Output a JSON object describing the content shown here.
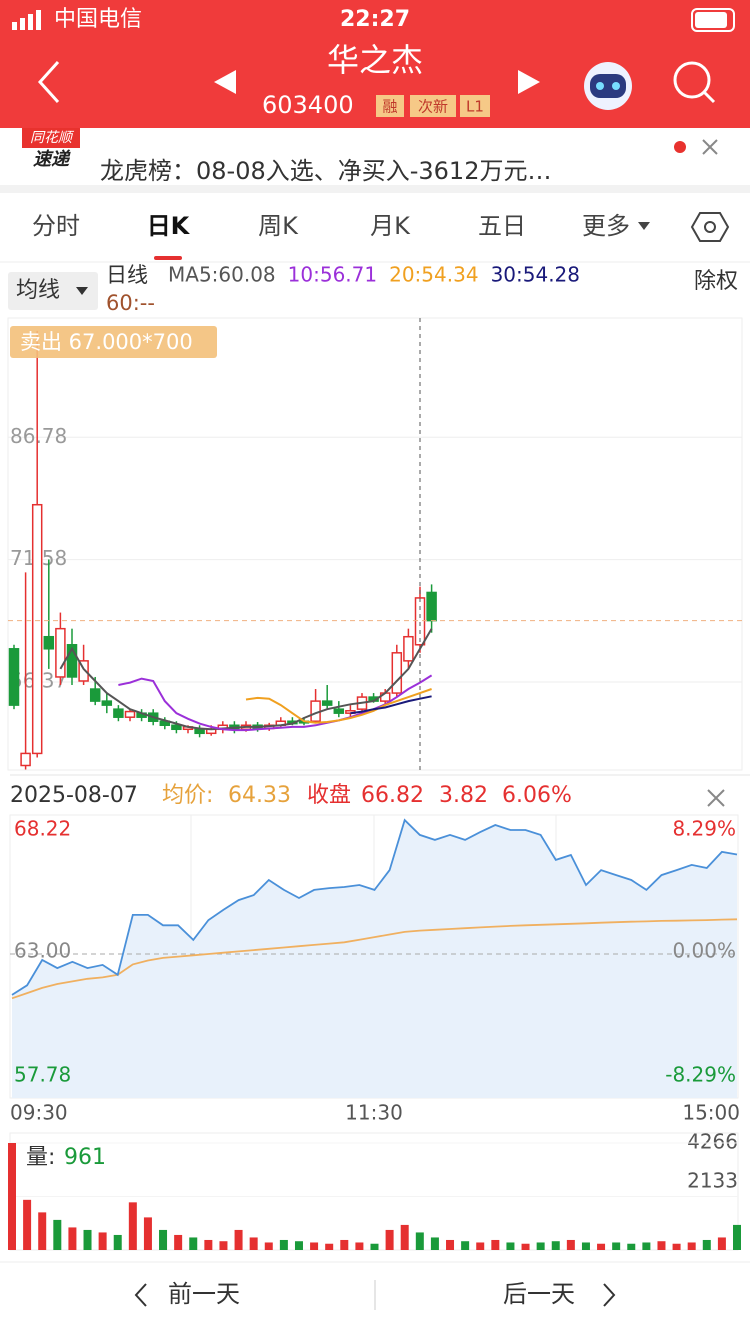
{
  "status": {
    "carrier": "中国电信",
    "time": "22:27"
  },
  "header": {
    "name": "华之杰",
    "code": "603400",
    "tags": [
      "融",
      "次新",
      "L1"
    ]
  },
  "news": {
    "badge_top": "同花顺",
    "badge_bottom": "速递",
    "text": "龙虎榜：08-08入选、净买入-3612万元…"
  },
  "tabs": {
    "items": [
      "分时",
      "日K",
      "周K",
      "月K",
      "五日",
      "更多"
    ],
    "active": 1
  },
  "kline": {
    "ma_button": "均线",
    "period": "日线",
    "ma60": "60:--",
    "adjust": "除权",
    "sell_tag": "卖出 67.000*700",
    "ma_labels": [
      {
        "label": "MA5:60.08",
        "color": "#555555"
      },
      {
        "label": "10:56.71",
        "color": "#9b30d9"
      },
      {
        "label": "20:54.34",
        "color": "#f0a020"
      },
      {
        "label": "30:54.28",
        "color": "#1a1a7a"
      }
    ],
    "ylim": [
      45.44,
      101.6
    ],
    "yticks": [
      86.78,
      71.58,
      56.37
    ],
    "selected": 35,
    "open": [
      60.5,
      46,
      47.5,
      62,
      57,
      61,
      56.5,
      55.5,
      54,
      53,
      52,
      52.5,
      52.5,
      51.5,
      51,
      50.5,
      50.5,
      50,
      50.5,
      51,
      50.5,
      51,
      50.6,
      51,
      51.5,
      51.5,
      51.5,
      54,
      53,
      52.5,
      53,
      54.5,
      54,
      55,
      59,
      61,
      67.5
    ],
    "close": [
      53.5,
      47.5,
      78.4,
      60.5,
      63,
      57,
      59,
      54,
      53.5,
      52,
      52.7,
      52,
      51.5,
      51,
      50.5,
      50.8,
      50,
      50.5,
      51,
      50.5,
      51,
      50.6,
      51,
      51.5,
      51.2,
      51.3,
      54,
      53.5,
      52.5,
      52.8,
      54.5,
      54,
      55,
      60,
      62,
      66.82,
      64
    ],
    "high": [
      61,
      70,
      100,
      71.6,
      65,
      63,
      61,
      57,
      55,
      53.5,
      53,
      53,
      53,
      52,
      51.5,
      51,
      51,
      51,
      51.5,
      51.5,
      51.5,
      51.4,
      51.3,
      52,
      52,
      52,
      55.5,
      56,
      54,
      53.5,
      55,
      55,
      55.5,
      61,
      63,
      68.22,
      68.5
    ],
    "low": [
      53,
      45.5,
      47,
      58,
      56,
      56,
      56,
      53.5,
      52.5,
      51.5,
      51.5,
      51.5,
      51,
      50.5,
      50,
      50,
      49.5,
      49.7,
      50,
      50,
      50.2,
      50.2,
      50.3,
      50.8,
      51,
      51,
      51.3,
      53,
      52,
      52,
      52.5,
      53.8,
      53.5,
      54.5,
      58,
      60,
      62.5
    ],
    "ma": [
      [
        null,
        null,
        null,
        null,
        58,
        60.5,
        58,
        56.5,
        55,
        54,
        53,
        52.5,
        52,
        51.6,
        51.2,
        50.8,
        50.6,
        50.5,
        50.6,
        50.7,
        50.8,
        50.8,
        50.9,
        51,
        51.2,
        51.9,
        52.5,
        53,
        53.3,
        53.6,
        53.8,
        54,
        55,
        56.5,
        58,
        60.5,
        63
      ],
      [
        null,
        null,
        null,
        null,
        null,
        null,
        null,
        null,
        null,
        56,
        56.3,
        56.8,
        56.5,
        54,
        52.5,
        51.8,
        51.2,
        50.8,
        50.5,
        50.4,
        50.4,
        50.5,
        50.6,
        50.7,
        50.8,
        50.8,
        51,
        51.3,
        51.6,
        52,
        52.5,
        53,
        53.6,
        54.5,
        55.5,
        56.3,
        57.2
      ],
      [
        null,
        null,
        null,
        null,
        null,
        null,
        null,
        null,
        null,
        null,
        null,
        null,
        null,
        null,
        null,
        null,
        null,
        null,
        null,
        null,
        54.2,
        54.4,
        54.3,
        53.5,
        52.5,
        51.5,
        51.3,
        51.4,
        51.6,
        51.9,
        52.3,
        52.8,
        53.5,
        54,
        54.5,
        55,
        55.5
      ],
      [
        null,
        null,
        null,
        null,
        null,
        null,
        null,
        null,
        null,
        null,
        null,
        null,
        null,
        null,
        null,
        null,
        null,
        null,
        null,
        null,
        null,
        null,
        null,
        null,
        null,
        null,
        null,
        null,
        null,
        52.5,
        52.7,
        53,
        53.2,
        53.6,
        54,
        54.3,
        54.6
      ]
    ]
  },
  "intraday": {
    "date": "2025-08-07",
    "avg_label": "均价:",
    "avg_value": 64.33,
    "close_label": "收盘",
    "close_value": 66.82,
    "change": 3.82,
    "change_pct": "6.06%",
    "ylim": [
      57.78,
      68.22
    ],
    "yticks": [
      68.22,
      {
        "value": 63,
        "label": "63.00"
      },
      57.78
    ],
    "pct_labels": [
      "8.29%",
      "0.00%",
      "-8.29%"
    ],
    "times": [
      "09:30",
      "11:30",
      "15:00"
    ],
    "price": [
      61.43,
      61.8,
      62.77,
      62.46,
      62.7,
      62.46,
      62.58,
      62.2,
      64.5,
      64.5,
      64.1,
      64.1,
      63.54,
      64.3,
      64.7,
      65.07,
      65.26,
      65.84,
      65.46,
      65.15,
      65.46,
      65.53,
      65.57,
      65.65,
      65.46,
      66.22,
      68.14,
      67.57,
      67.38,
      67.57,
      67.38,
      67.68,
      67.95,
      67.76,
      67.76,
      67.57,
      66.61,
      66.8,
      65.65,
      66.22,
      66.03,
      65.84,
      65.46,
      66.03,
      66.22,
      66.42,
      66.3,
      66.92,
      66.82
    ],
    "avg": [
      61.3,
      61.5,
      61.7,
      61.85,
      61.95,
      62.05,
      62.1,
      62.2,
      62.6,
      62.75,
      62.85,
      62.9,
      62.95,
      63.0,
      63.05,
      63.1,
      63.15,
      63.2,
      63.25,
      63.3,
      63.35,
      63.4,
      63.45,
      63.55,
      63.65,
      63.75,
      63.85,
      63.9,
      63.93,
      63.96,
      63.99,
      64.02,
      64.05,
      64.08,
      64.1,
      64.12,
      64.14,
      64.16,
      64.18,
      64.2,
      64.22,
      64.24,
      64.25,
      64.27,
      64.28,
      64.29,
      64.3,
      64.32,
      64.33
    ]
  },
  "volume": {
    "label": "量:",
    "value": 961,
    "ylim": [
      0,
      4266
    ],
    "yticks": [
      4266,
      2133
    ],
    "values": [
      4266,
      2000,
      1500,
      1200,
      900,
      800,
      700,
      600,
      1900,
      1300,
      800,
      600,
      500,
      400,
      350,
      800,
      500,
      300,
      400,
      350,
      300,
      250,
      400,
      300,
      250,
      800,
      1000,
      700,
      500,
      400,
      350,
      300,
      400,
      300,
      250,
      300,
      350,
      400,
      300,
      250,
      300,
      250,
      300,
      350,
      250,
      300,
      400,
      500,
      1000
    ]
  },
  "footer": {
    "prev": "前一天",
    "next": "后一天"
  }
}
